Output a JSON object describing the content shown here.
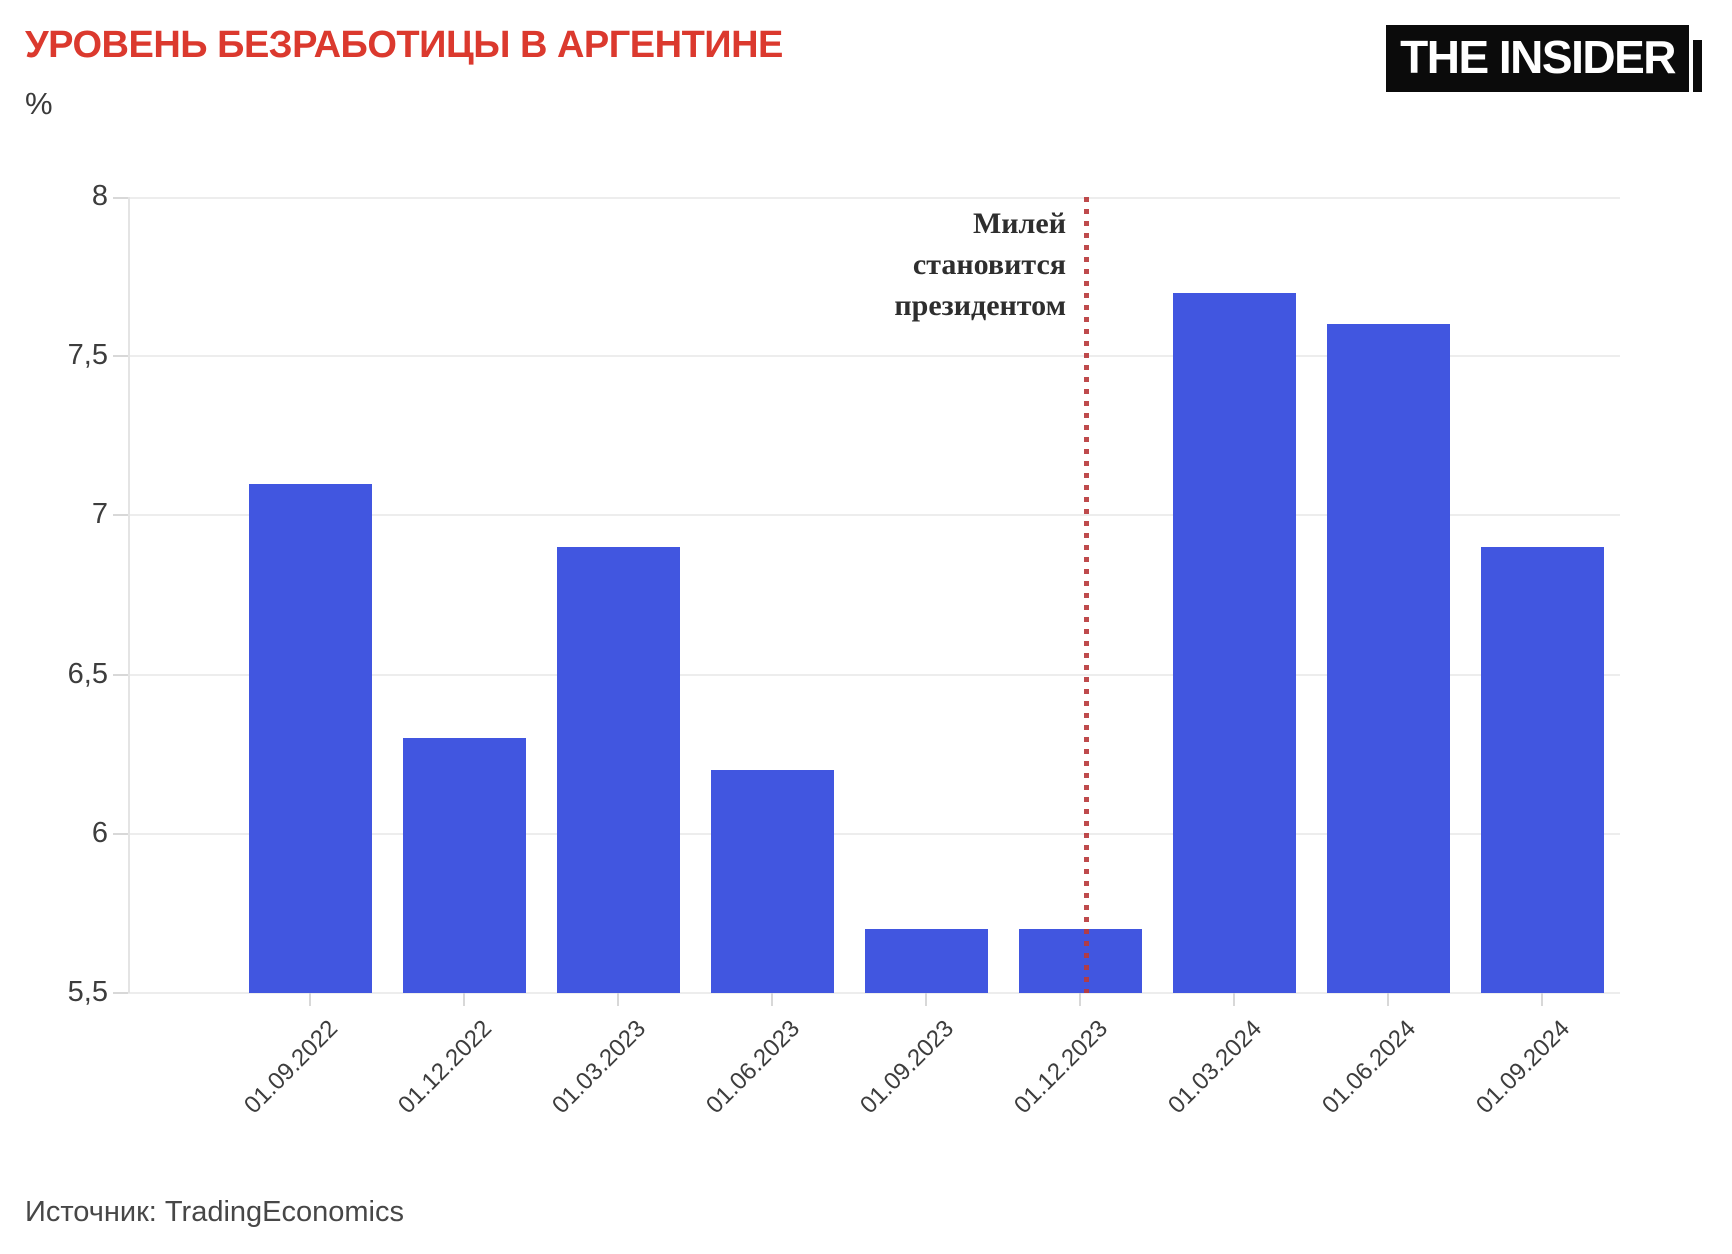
{
  "header": {
    "title": "УРОВЕНЬ БЕЗРАБОТИЦЫ В АРГЕНТИНЕ",
    "unit_label": "%",
    "logo_text": "THE INSIDER"
  },
  "annotation": {
    "lines": [
      "Милей",
      "становится",
      "президентом"
    ]
  },
  "footer": {
    "source_label": "Источник: TradingEconomics"
  },
  "colors": {
    "title_red": "#db392e",
    "bar_blue": "#4156e0",
    "event_line_red": "#b93a3c",
    "grid_gray": "#ededed",
    "tick_gray": "#d8d8d8",
    "axis_text_gray": "#3d3d3d"
  },
  "chart_data": {
    "type": "bar",
    "title": "УРОВЕНЬ БЕЗРАБОТИЦЫ В АРГЕНТИНЕ",
    "ylabel": "%",
    "categories": [
      "01.09.2022",
      "01.12.2022",
      "01.03.2023",
      "01.06.2023",
      "01.09.2023",
      "01.12.2023",
      "01.03.2024",
      "01.06.2024",
      "01.09.2024"
    ],
    "values": [
      7.1,
      6.3,
      6.9,
      6.2,
      5.7,
      5.7,
      7.7,
      7.6,
      6.9
    ],
    "ylim": [
      5.5,
      8
    ],
    "ytick_labels": [
      "5,5",
      "6",
      "6,5",
      "7",
      "7,5",
      "8"
    ],
    "ytick_values": [
      5.5,
      6,
      6.5,
      7,
      7.5,
      8
    ],
    "grid": "horizontal-only",
    "legend": "none",
    "event_annotation": {
      "text": "Милей становится президентом",
      "at_category": "01.12.2023"
    },
    "source": "Источник: TradingEconomics"
  }
}
